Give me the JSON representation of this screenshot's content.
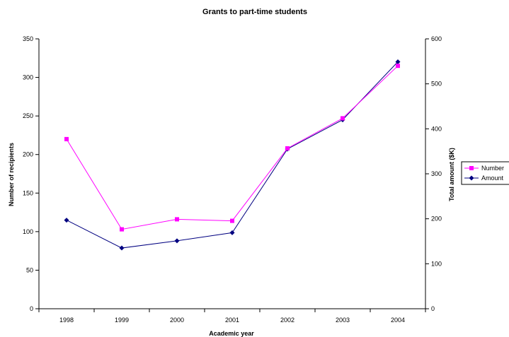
{
  "chart_data": {
    "type": "line",
    "title": "Grants to part-time students",
    "xlabel": "Academic year",
    "ylabel": "Number of recipients",
    "y2label": "Total amount ($K)",
    "categories": [
      "1998",
      "1999",
      "2000",
      "2001",
      "2002",
      "2003",
      "2004"
    ],
    "ylim": [
      0,
      350
    ],
    "yticks": [
      0,
      50,
      100,
      150,
      200,
      250,
      300,
      350
    ],
    "y2lim": [
      0,
      600
    ],
    "y2ticks": [
      0,
      100,
      200,
      300,
      400,
      500,
      600
    ],
    "grid": false,
    "legend_position": "right",
    "series": [
      {
        "name": "Number",
        "axis": "left",
        "color": "#ff00ff",
        "marker": "square",
        "values": [
          220,
          103,
          116,
          114,
          208,
          247,
          315
        ]
      },
      {
        "name": "Amount",
        "axis": "right",
        "color": "#000080",
        "marker": "diamond",
        "values": [
          197,
          135,
          151,
          169,
          355,
          420,
          549
        ]
      }
    ]
  }
}
